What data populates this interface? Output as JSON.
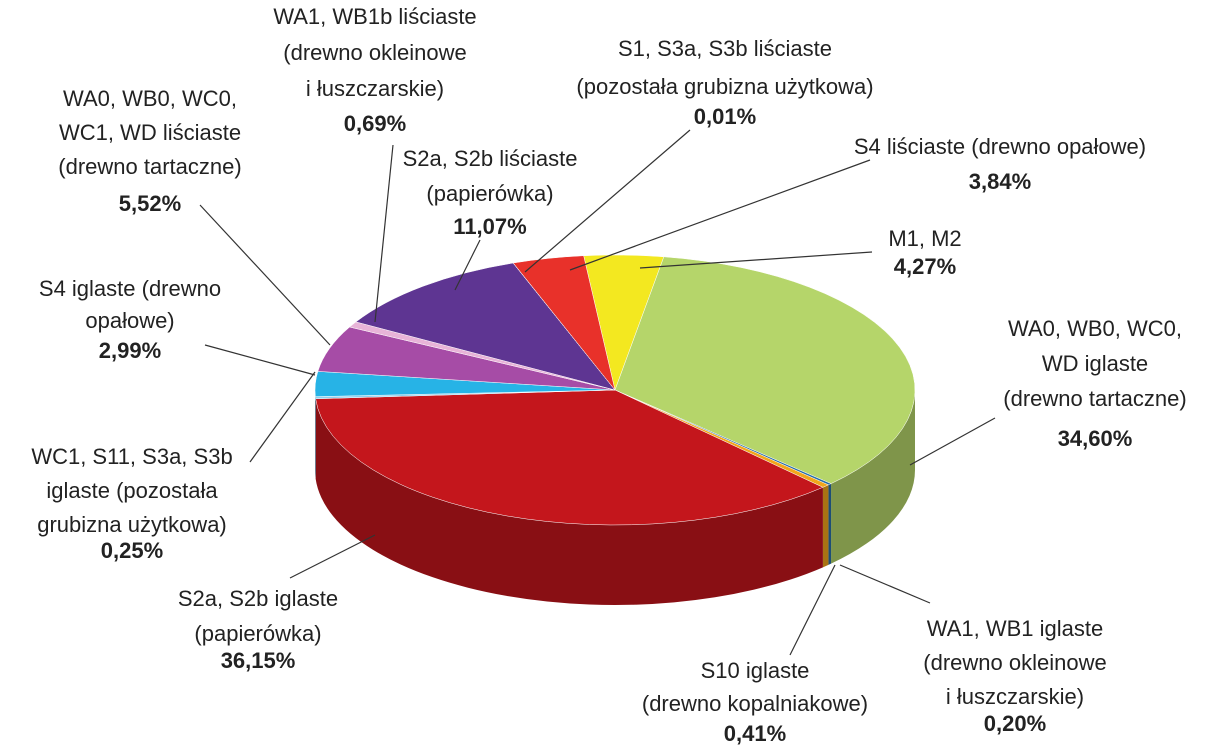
{
  "chart_data": {
    "type": "pie",
    "categories": [
      [
        "M1, M2"
      ],
      [
        "WA0, WB0, WC0,",
        "WD iglaste",
        "(drewno tartaczne)"
      ],
      [
        "WA1, WB1 iglaste",
        "(drewno okleinowe",
        "i łuszczarskie)"
      ],
      [
        "S10 iglaste",
        "(drewno kopalniakowe)"
      ],
      [
        "S2a, S2b iglaste",
        "(papierówka)"
      ],
      [
        "WC1, S11, S3a, S3b",
        "iglaste (pozostała",
        "grubizna użytkowa)"
      ],
      [
        "S4 iglaste (drewno",
        "opałowe)"
      ],
      [
        "WA0, WB0, WC0,",
        "WC1, WD liściaste",
        "(drewno tartaczne)"
      ],
      [
        "WA1, WB1b liściaste",
        "(drewno okleinowe",
        "i łuszczarskie)"
      ],
      [
        "S2a, S2b liściaste",
        "(papierówka)"
      ],
      [
        "S1, S3a, S3b liściaste",
        "(pozostała grubizna użytkowa)"
      ],
      [
        "S4 liściaste (drewno opałowe)"
      ]
    ],
    "values": [
      4.27,
      34.6,
      0.2,
      0.41,
      36.15,
      0.25,
      2.99,
      5.52,
      0.69,
      11.07,
      0.01,
      3.84
    ],
    "value_labels": [
      "4,27%",
      "34,60%",
      "0,20%",
      "0,41%",
      "36,15%",
      "0,25%",
      "2,99%",
      "5,52%",
      "0,69%",
      "11,07%",
      "0,01%",
      "3,84%"
    ],
    "colors": [
      "#f3e820",
      "#b5d56a",
      "#2a6fa8",
      "#f2a51b",
      "#c4161c",
      "#8fd0ef",
      "#27b3e6",
      "#a64ca6",
      "#e8b4d8",
      "#5e3592",
      "#777777",
      "#e8312a"
    ]
  }
}
